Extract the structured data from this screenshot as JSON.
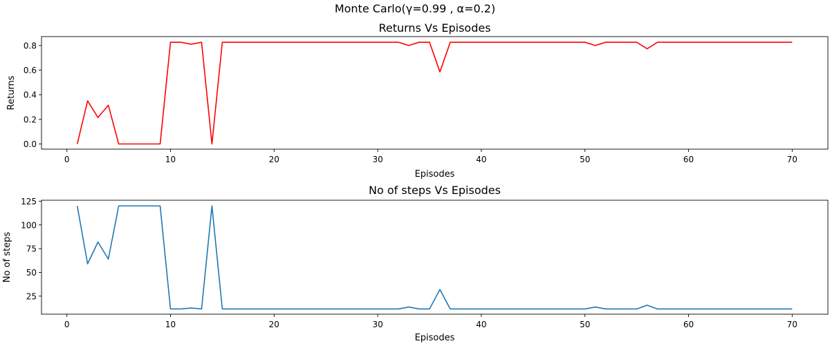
{
  "suptitle": "Monte Carlo(γ=0.99 , α=0.2)",
  "chart_data": [
    {
      "type": "line",
      "title": "Returns Vs Episodes",
      "xlabel": "Episodes",
      "ylabel": "Returns",
      "xlim": [
        -2.45,
        73.45
      ],
      "ylim": [
        -0.042,
        0.872
      ],
      "xticks": [
        0,
        10,
        20,
        30,
        40,
        50,
        60,
        70
      ],
      "yticks": [
        0.0,
        0.2,
        0.4,
        0.6,
        0.8
      ],
      "ytick_labels": [
        "0.0",
        "0.2",
        "0.4",
        "0.6",
        "0.8"
      ],
      "color": "#ff0000",
      "grid": false,
      "series": [
        {
          "x": [
            1,
            2,
            3,
            4,
            5,
            6,
            7,
            8,
            9,
            10,
            11,
            12,
            13,
            14,
            15,
            16,
            17,
            18,
            19,
            20,
            21,
            22,
            23,
            24,
            25,
            26,
            27,
            28,
            29,
            30,
            31,
            32,
            33,
            34,
            35,
            36,
            37,
            38,
            39,
            40,
            41,
            42,
            43,
            44,
            45,
            46,
            47,
            48,
            49,
            50,
            51,
            52,
            53,
            54,
            55,
            56,
            57,
            58,
            59,
            60,
            61,
            62,
            63,
            64,
            65,
            66,
            67,
            68,
            69,
            70
          ],
          "values": [
            0.0,
            0.35,
            0.215,
            0.315,
            0.0,
            0.0,
            0.0,
            0.0,
            0.0,
            0.826,
            0.826,
            0.81,
            0.826,
            0.0,
            0.826,
            0.826,
            0.826,
            0.826,
            0.826,
            0.826,
            0.826,
            0.826,
            0.826,
            0.826,
            0.826,
            0.826,
            0.826,
            0.826,
            0.826,
            0.826,
            0.826,
            0.826,
            0.8,
            0.826,
            0.826,
            0.585,
            0.826,
            0.826,
            0.826,
            0.826,
            0.826,
            0.826,
            0.826,
            0.826,
            0.826,
            0.826,
            0.826,
            0.826,
            0.826,
            0.826,
            0.8,
            0.826,
            0.826,
            0.826,
            0.826,
            0.773,
            0.826,
            0.826,
            0.826,
            0.826,
            0.826,
            0.826,
            0.826,
            0.826,
            0.826,
            0.826,
            0.826,
            0.826,
            0.826,
            0.826
          ]
        }
      ]
    },
    {
      "type": "line",
      "title": "No of steps Vs Episodes",
      "xlabel": "Episodes",
      "ylabel": "No of steps",
      "xlim": [
        -2.45,
        73.45
      ],
      "ylim": [
        6.0,
        126.0
      ],
      "xticks": [
        0,
        10,
        20,
        30,
        40,
        50,
        60,
        70
      ],
      "yticks": [
        25,
        50,
        75,
        100,
        125
      ],
      "ytick_labels": [
        "25",
        "50",
        "75",
        "100",
        "125"
      ],
      "color": "#1f77b4",
      "grid": false,
      "series": [
        {
          "x": [
            1,
            2,
            3,
            4,
            5,
            6,
            7,
            8,
            9,
            10,
            11,
            12,
            13,
            14,
            15,
            16,
            17,
            18,
            19,
            20,
            21,
            22,
            23,
            24,
            25,
            26,
            27,
            28,
            29,
            30,
            31,
            32,
            33,
            34,
            35,
            36,
            37,
            38,
            39,
            40,
            41,
            42,
            43,
            44,
            45,
            46,
            47,
            48,
            49,
            50,
            51,
            52,
            53,
            54,
            55,
            56,
            57,
            58,
            59,
            60,
            61,
            62,
            63,
            64,
            65,
            66,
            67,
            68,
            69,
            70
          ],
          "values": [
            120,
            59,
            82,
            64,
            120,
            120,
            120,
            120,
            120,
            11.5,
            11.5,
            12.5,
            11.5,
            120,
            11.5,
            11.5,
            11.5,
            11.5,
            11.5,
            11.5,
            11.5,
            11.5,
            11.5,
            11.5,
            11.5,
            11.5,
            11.5,
            11.5,
            11.5,
            11.5,
            11.5,
            11.5,
            13.5,
            11.5,
            11.5,
            32,
            11.5,
            11.5,
            11.5,
            11.5,
            11.5,
            11.5,
            11.5,
            11.5,
            11.5,
            11.5,
            11.5,
            11.5,
            11.5,
            11.5,
            13.5,
            11.5,
            11.5,
            11.5,
            11.5,
            15.5,
            11.5,
            11.5,
            11.5,
            11.5,
            11.5,
            11.5,
            11.5,
            11.5,
            11.5,
            11.5,
            11.5,
            11.5,
            11.5,
            11.5
          ]
        }
      ]
    }
  ]
}
